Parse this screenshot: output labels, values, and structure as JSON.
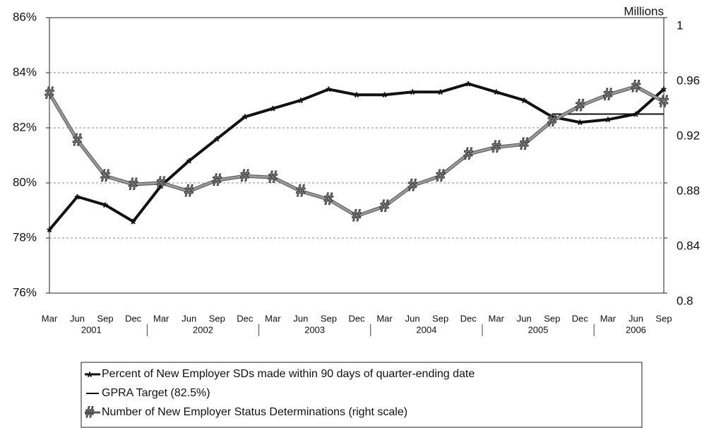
{
  "chart_data": {
    "type": "line",
    "categories": [
      "Mar",
      "Jun",
      "Sep",
      "Dec",
      "Mar",
      "Jun",
      "Sep",
      "Dec",
      "Mar",
      "Jun",
      "Sep",
      "Dec",
      "Mar",
      "Jun",
      "Sep",
      "Dec",
      "Mar",
      "Jun",
      "Sep",
      "Dec",
      "Mar",
      "Jun",
      "Sep"
    ],
    "years": [
      "2001",
      "2002",
      "2003",
      "2004",
      "2005",
      "2006"
    ],
    "y2_label": "Millions",
    "series": [
      {
        "name": "Percent of New Employer SDs made within 90 days of quarter-ending date",
        "color": "#111111",
        "marker": "*",
        "values": [
          78.3,
          79.5,
          79.2,
          78.6,
          79.9,
          80.8,
          81.6,
          82.4,
          82.7,
          83.0,
          83.4,
          83.2,
          83.2,
          83.3,
          83.3,
          83.6,
          83.3,
          83.0,
          82.4,
          82.2,
          82.3,
          82.5,
          83.4
        ]
      },
      {
        "name": "GPRA Target (82.5%)",
        "color": "#111111",
        "values": [
          null,
          null,
          null,
          null,
          null,
          null,
          null,
          null,
          null,
          null,
          null,
          null,
          null,
          null,
          null,
          null,
          null,
          null,
          82.5,
          82.5,
          82.5,
          82.5,
          82.5
        ]
      },
      {
        "name": "Number of New Employer Status Determinations (right scale)",
        "color": "#9a9a9a",
        "marker": "#",
        "axis": "y2",
        "values": [
          0.945,
          0.911,
          0.885,
          0.879,
          0.88,
          0.874,
          0.882,
          0.885,
          0.884,
          0.874,
          0.868,
          0.856,
          0.863,
          0.878,
          0.885,
          0.901,
          0.906,
          0.908,
          0.925,
          0.936,
          0.944,
          0.95,
          0.939
        ]
      }
    ],
    "ylim": [
      76,
      86
    ],
    "yticks": [
      {
        "value": 76,
        "label": "76%"
      },
      {
        "value": 78,
        "label": "78%"
      },
      {
        "value": 80,
        "label": "80%"
      },
      {
        "value": 82,
        "label": "82%"
      },
      {
        "value": 84,
        "label": "84%"
      },
      {
        "value": 86,
        "label": "86%"
      }
    ],
    "y2lim": [
      0.8,
      1
    ],
    "y2ticks": [
      0.8,
      0.84,
      0.88,
      0.92,
      0.96,
      1
    ],
    "grid": true
  }
}
